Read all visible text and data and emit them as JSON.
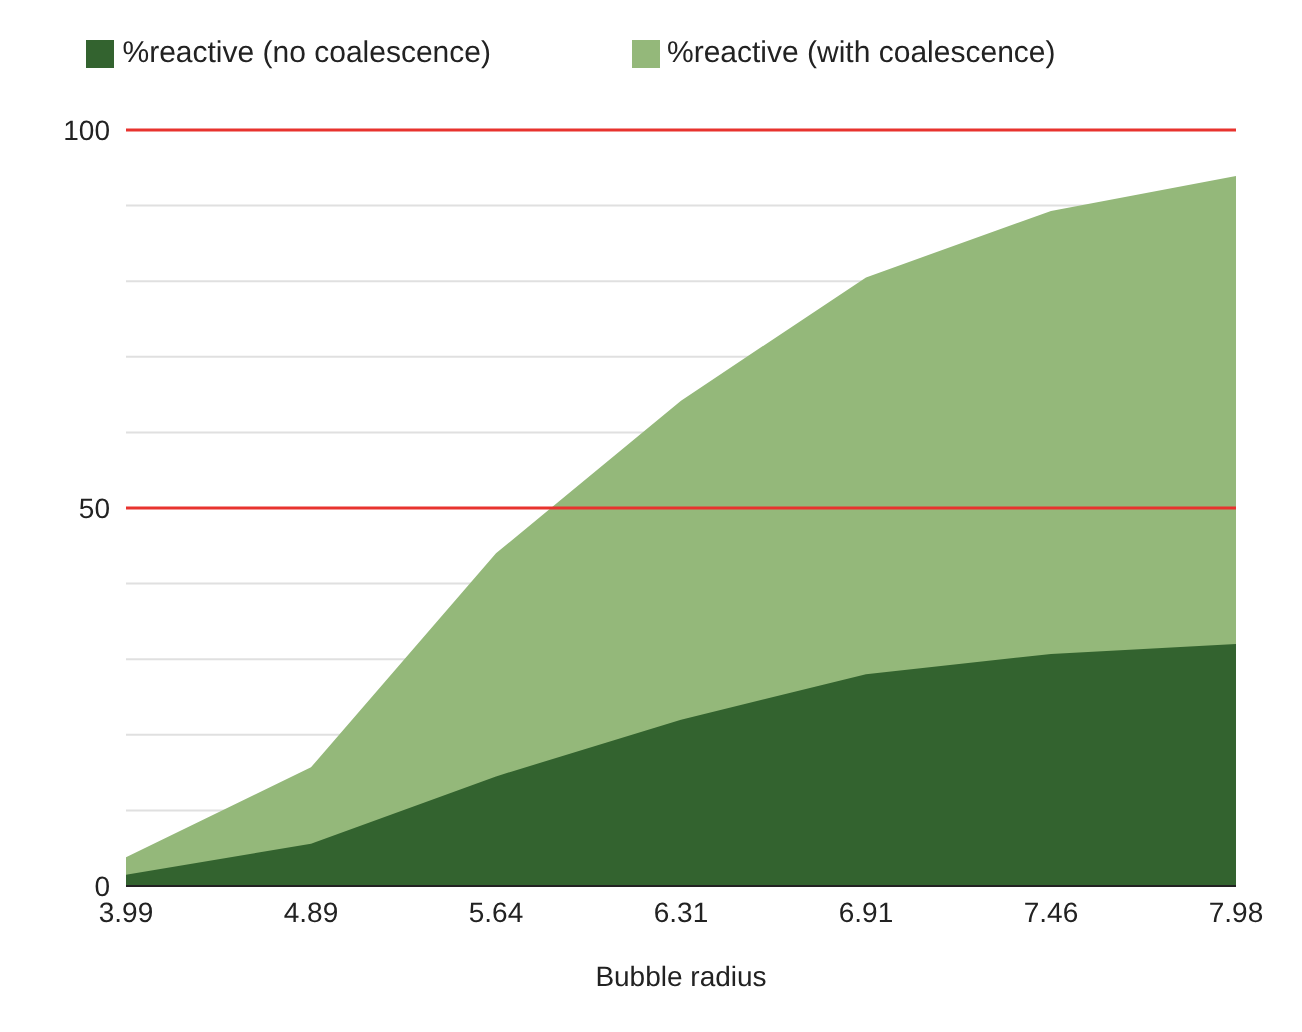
{
  "chart_data": {
    "type": "area",
    "xlabel": "Bubble radius",
    "categories": [
      "3.99",
      "4.89",
      "5.64",
      "6.31",
      "6.91",
      "7.46",
      "7.98"
    ],
    "series": [
      {
        "name": "%reactive (no coalescence)",
        "color": "#33632f",
        "values": [
          1.5,
          5.6,
          14.5,
          22,
          28,
          30.7,
          32
        ]
      },
      {
        "name": "%reactive (with coalescence)",
        "color": "#94b87a",
        "values": [
          3.8,
          15.7,
          44,
          64.2,
          80.5,
          89.3,
          93.9
        ]
      }
    ],
    "ylim": [
      0,
      100
    ],
    "yticks": [
      0,
      {
        "value": 10,
        "label": null
      },
      {
        "value": 20,
        "label": null
      },
      {
        "value": 30,
        "label": null
      },
      {
        "value": 40,
        "label": null
      },
      50,
      {
        "value": 60,
        "label": null
      },
      {
        "value": 70,
        "label": null
      },
      {
        "value": 80,
        "label": null
      },
      {
        "value": 90,
        "label": null
      },
      100
    ],
    "grid": "y",
    "legend": "top",
    "ref_lines": [
      {
        "axis": "y",
        "value": 50,
        "color": "#e8332e"
      },
      {
        "axis": "y",
        "value": 100,
        "color": "#e8332e"
      }
    ]
  }
}
